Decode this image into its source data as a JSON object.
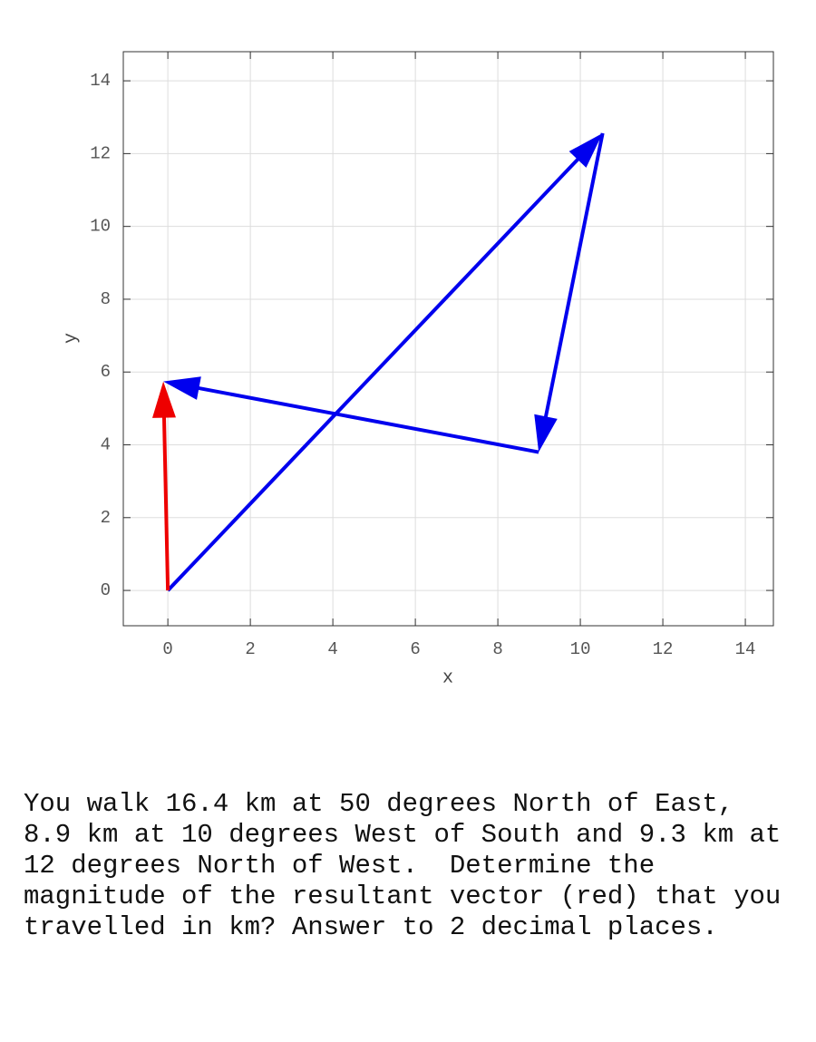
{
  "chart_data": {
    "type": "vector",
    "x_label": "x",
    "y_label": "y",
    "xlim": [
      -1.08,
      14.68
    ],
    "ylim": [
      -0.97,
      14.8
    ],
    "xticks": [
      0,
      2,
      4,
      6,
      8,
      10,
      12,
      14
    ],
    "yticks": [
      0,
      2,
      4,
      6,
      8,
      10,
      12,
      14
    ],
    "grid": true,
    "vectors": [
      {
        "color": "#0000ee",
        "x": [
          0,
          10.54
        ],
        "y": [
          0,
          12.56
        ]
      },
      {
        "color": "#0000ee",
        "x": [
          10.54,
          8.99
        ],
        "y": [
          12.56,
          3.8
        ]
      },
      {
        "color": "#0000ee",
        "x": [
          8.99,
          -0.11
        ],
        "y": [
          3.8,
          5.74
        ]
      },
      {
        "color": "#ee0000",
        "x": [
          0,
          -0.11
        ],
        "y": [
          0,
          5.74
        ]
      }
    ]
  },
  "question": [
    "You walk 16.4 km at 50 degrees North of East,",
    "8.9 km at 10 degrees West of South and 9.3 km at",
    "12 degrees North of West.  Determine the",
    "magnitude of the resultant vector (red) that you",
    "travelled in km? Answer to 2 decimal places."
  ]
}
